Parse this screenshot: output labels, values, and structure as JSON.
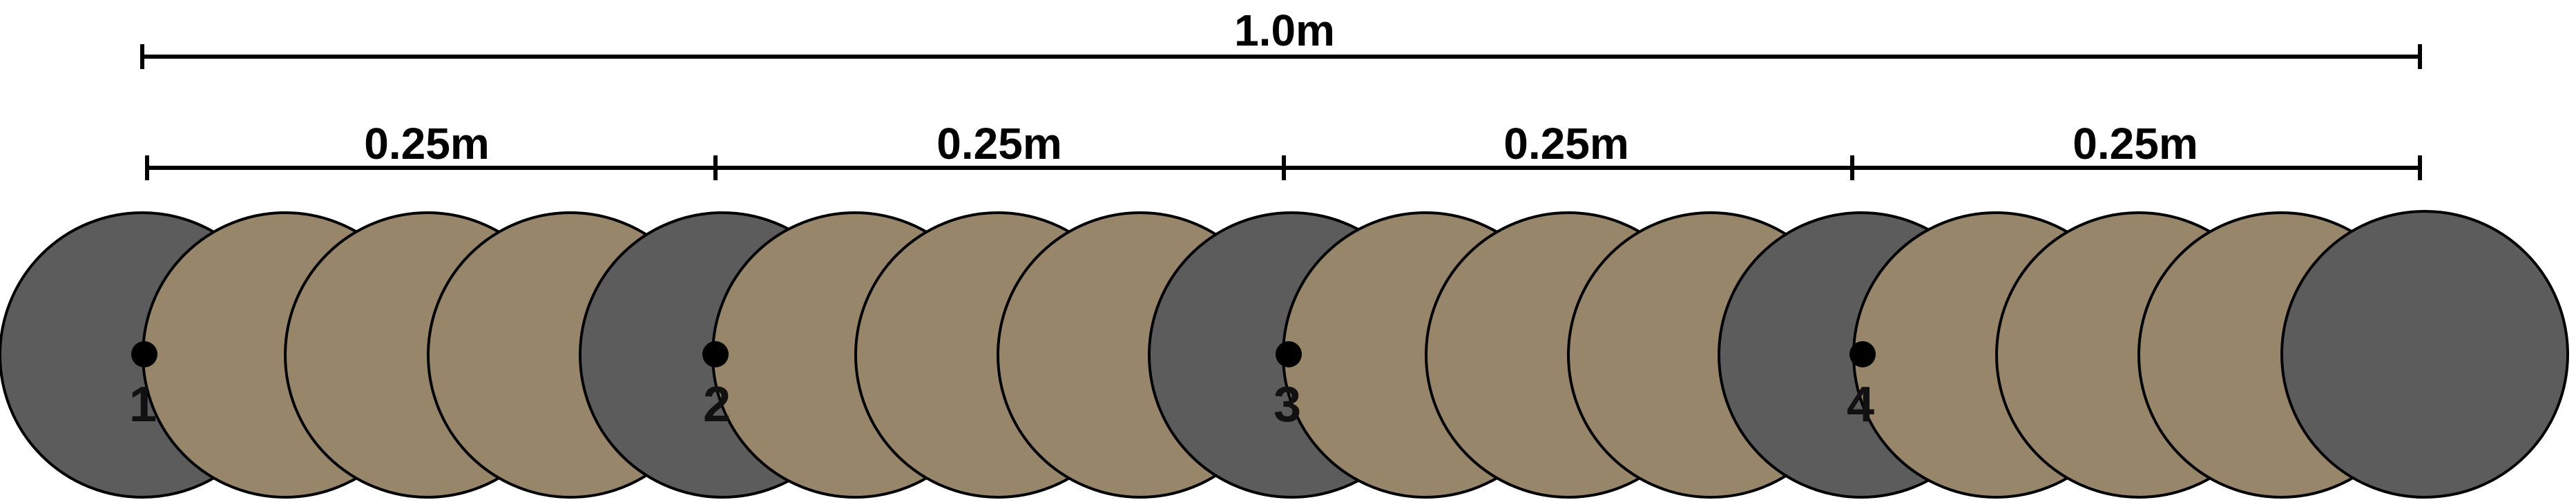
{
  "diagram": {
    "total_dimension": {
      "label": "1.0m"
    },
    "segment_dimensions": [
      {
        "label": "0.25m"
      },
      {
        "label": "0.25m"
      },
      {
        "label": "0.25m"
      },
      {
        "label": "0.25m"
      }
    ],
    "markers": [
      {
        "label": "1"
      },
      {
        "label": "2"
      },
      {
        "label": "3"
      },
      {
        "label": "4"
      }
    ],
    "colors": {
      "marked_circle": "#5c5c5c",
      "intermediate_circle": "#97866a",
      "outline": "#000000"
    }
  }
}
